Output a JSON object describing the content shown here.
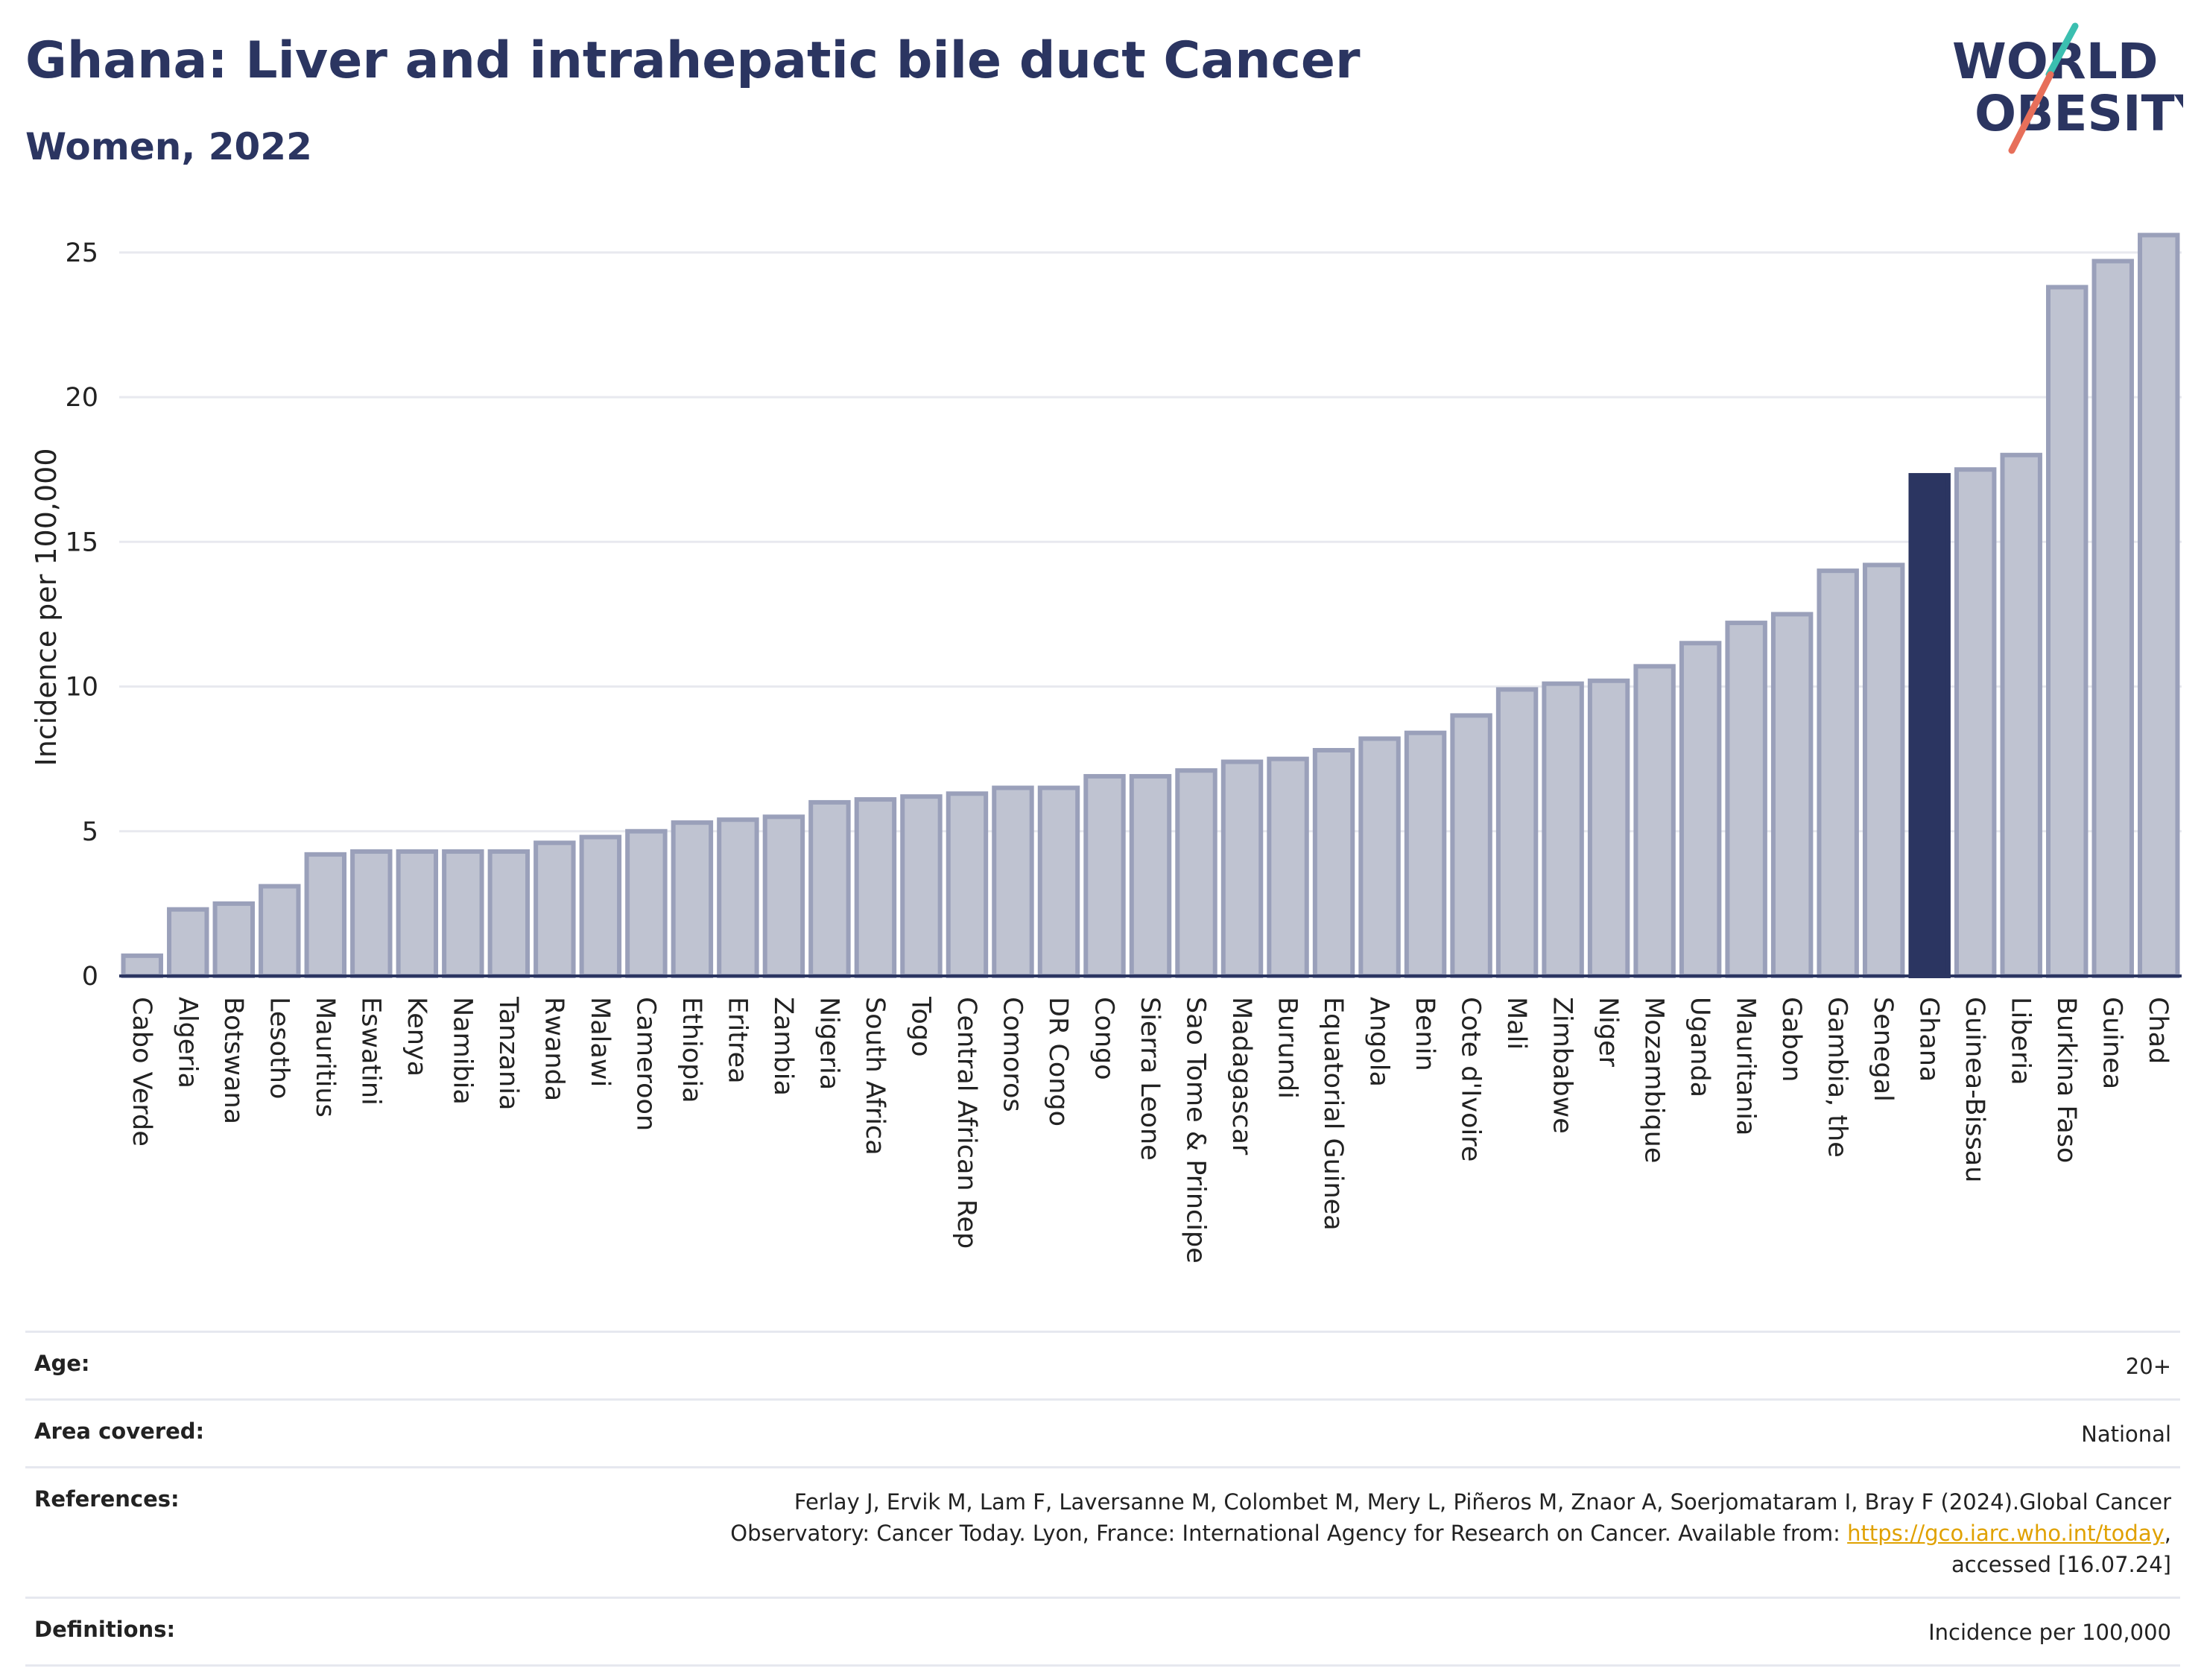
{
  "header": {
    "title": "Ghana: Liver and intrahepatic bile duct Cancer",
    "subtitle": "Women, 2022"
  },
  "logo": {
    "line1": "WORLD",
    "line2": "OBESITY"
  },
  "chart_data": {
    "type": "bar",
    "ylabel": "Incidence per 100,000",
    "xlabel": "",
    "ylim": [
      0,
      26
    ],
    "yticks": [
      0,
      5,
      10,
      15,
      20,
      25
    ],
    "grid": true,
    "highlight": "Ghana",
    "colors": {
      "bar": "#bfc3d1",
      "bar_edge": "#9aa0ba",
      "highlight": "#2b3561"
    },
    "categories": [
      "Cabo Verde",
      "Algeria",
      "Botswana",
      "Lesotho",
      "Mauritius",
      "Eswatini",
      "Kenya",
      "Namibia",
      "Tanzania",
      "Rwanda",
      "Malawi",
      "Cameroon",
      "Ethiopia",
      "Eritrea",
      "Zambia",
      "Nigeria",
      "South Africa",
      "Togo",
      "Central African Rep",
      "Comoros",
      "DR Congo",
      "Congo",
      "Sierra Leone",
      "Sao Tome & Principe",
      "Madagascar",
      "Burundi",
      "Equatorial Guinea",
      "Angola",
      "Benin",
      "Cote d'Ivoire",
      "Mali",
      "Zimbabwe",
      "Niger",
      "Mozambique",
      "Uganda",
      "Mauritania",
      "Gabon",
      "Gambia, the",
      "Senegal",
      "Ghana",
      "Guinea-Bissau",
      "Liberia",
      "Burkina Faso",
      "Guinea",
      "Chad"
    ],
    "values": [
      0.7,
      2.3,
      2.5,
      3.1,
      4.2,
      4.3,
      4.3,
      4.3,
      4.3,
      4.6,
      4.8,
      5.0,
      5.3,
      5.4,
      5.5,
      6.0,
      6.1,
      6.2,
      6.3,
      6.5,
      6.5,
      6.9,
      6.9,
      7.1,
      7.4,
      7.5,
      7.8,
      8.2,
      8.4,
      9.0,
      9.9,
      10.1,
      10.2,
      10.7,
      11.5,
      12.2,
      12.5,
      14.0,
      14.2,
      17.3,
      17.5,
      18.0,
      23.8,
      24.7,
      25.6
    ]
  },
  "meta": [
    {
      "label": "Age:",
      "value": "20+"
    },
    {
      "label": "Area covered:",
      "value": "National"
    },
    {
      "label": "References:",
      "value_pre": "Ferlay J, Ervik M, Lam F, Laversanne M, Colombet M, Mery L, Piñeros M, Znaor A, Soerjomataram I, Bray F (2024).Global Cancer Observatory: Cancer Today. Lyon, France: International Agency for Research on Cancer. Available from: ",
      "link": "https://gco.iarc.who.int/today",
      "value_post": ", accessed [16.07.24]"
    },
    {
      "label": "Definitions:",
      "value": "Incidence per 100,000"
    }
  ]
}
